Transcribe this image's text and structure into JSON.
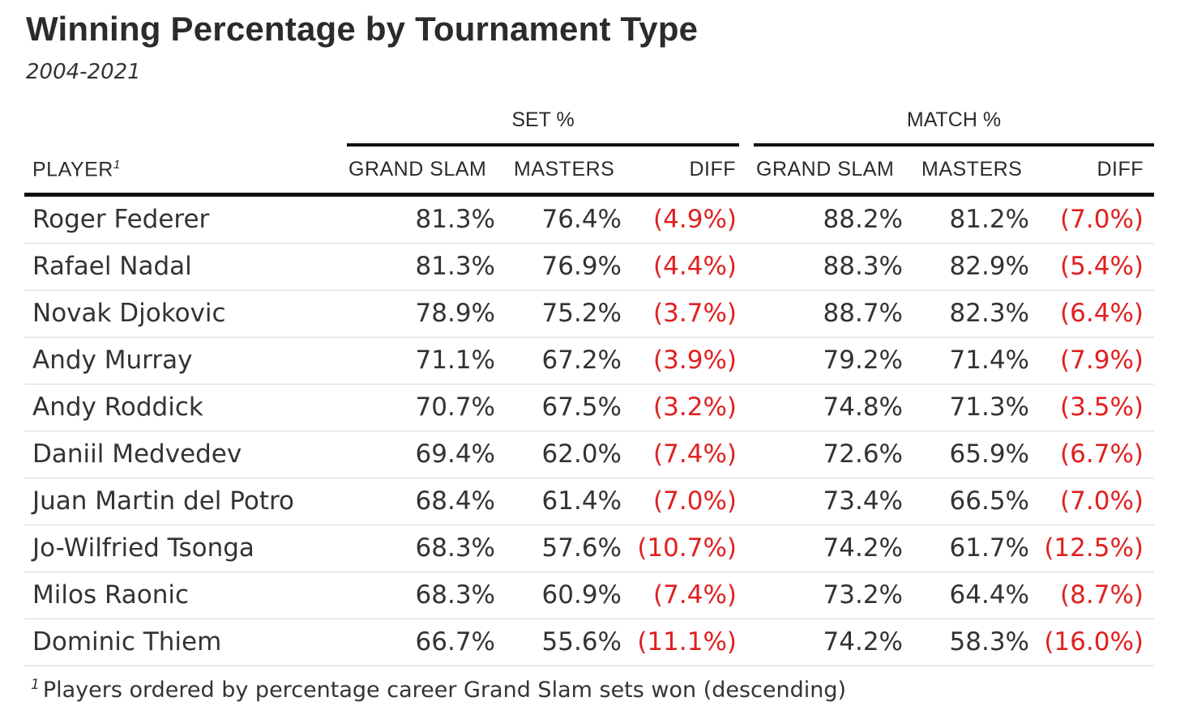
{
  "title": "Winning Percentage by Tournament Type",
  "subtitle": "2004-2021",
  "groups": {
    "set": "SET %",
    "match": "MATCH %"
  },
  "columns": {
    "player": "PLAYER",
    "player_footnote_mark": "1",
    "set_grand_slam": "GRAND SLAM",
    "set_masters": "MASTERS",
    "set_diff": "DIFF",
    "match_grand_slam": "GRAND SLAM",
    "match_masters": "MASTERS",
    "match_diff": "DIFF"
  },
  "colors": {
    "diff_negative": "#e02020",
    "text": "#333333",
    "rule": "#111111"
  },
  "chart_data": {
    "type": "table",
    "title": "Winning Percentage by Tournament Type",
    "subtitle": "2004-2021",
    "column_groups": [
      "SET %",
      "MATCH %"
    ],
    "columns": [
      "PLAYER",
      "GRAND SLAM",
      "MASTERS",
      "DIFF",
      "GRAND SLAM",
      "MASTERS",
      "DIFF"
    ],
    "rows": [
      {
        "player": "Roger Federer",
        "set_gs": "81.3%",
        "set_masters": "76.4%",
        "set_diff": "(4.9%)",
        "match_gs": "88.2%",
        "match_masters": "81.2%",
        "match_diff": "(7.0%)"
      },
      {
        "player": "Rafael Nadal",
        "set_gs": "81.3%",
        "set_masters": "76.9%",
        "set_diff": "(4.4%)",
        "match_gs": "88.3%",
        "match_masters": "82.9%",
        "match_diff": "(5.4%)"
      },
      {
        "player": "Novak Djokovic",
        "set_gs": "78.9%",
        "set_masters": "75.2%",
        "set_diff": "(3.7%)",
        "match_gs": "88.7%",
        "match_masters": "82.3%",
        "match_diff": "(6.4%)"
      },
      {
        "player": "Andy Murray",
        "set_gs": "71.1%",
        "set_masters": "67.2%",
        "set_diff": "(3.9%)",
        "match_gs": "79.2%",
        "match_masters": "71.4%",
        "match_diff": "(7.9%)"
      },
      {
        "player": "Andy Roddick",
        "set_gs": "70.7%",
        "set_masters": "67.5%",
        "set_diff": "(3.2%)",
        "match_gs": "74.8%",
        "match_masters": "71.3%",
        "match_diff": "(3.5%)"
      },
      {
        "player": "Daniil Medvedev",
        "set_gs": "69.4%",
        "set_masters": "62.0%",
        "set_diff": "(7.4%)",
        "match_gs": "72.6%",
        "match_masters": "65.9%",
        "match_diff": "(6.7%)"
      },
      {
        "player": "Juan Martin del Potro",
        "set_gs": "68.4%",
        "set_masters": "61.4%",
        "set_diff": "(7.0%)",
        "match_gs": "73.4%",
        "match_masters": "66.5%",
        "match_diff": "(7.0%)"
      },
      {
        "player": "Jo-Wilfried Tsonga",
        "set_gs": "68.3%",
        "set_masters": "57.6%",
        "set_diff": "(10.7%)",
        "match_gs": "74.2%",
        "match_masters": "61.7%",
        "match_diff": "(12.5%)"
      },
      {
        "player": "Milos Raonic",
        "set_gs": "68.3%",
        "set_masters": "60.9%",
        "set_diff": "(7.4%)",
        "match_gs": "73.2%",
        "match_masters": "64.4%",
        "match_diff": "(8.7%)"
      },
      {
        "player": "Dominic Thiem",
        "set_gs": "66.7%",
        "set_masters": "55.6%",
        "set_diff": "(11.1%)",
        "match_gs": "74.2%",
        "match_masters": "58.3%",
        "match_diff": "(16.0%)"
      }
    ],
    "footnote_mark": "1",
    "footnote": "Players ordered by percentage career Grand Slam sets won (descending)"
  }
}
